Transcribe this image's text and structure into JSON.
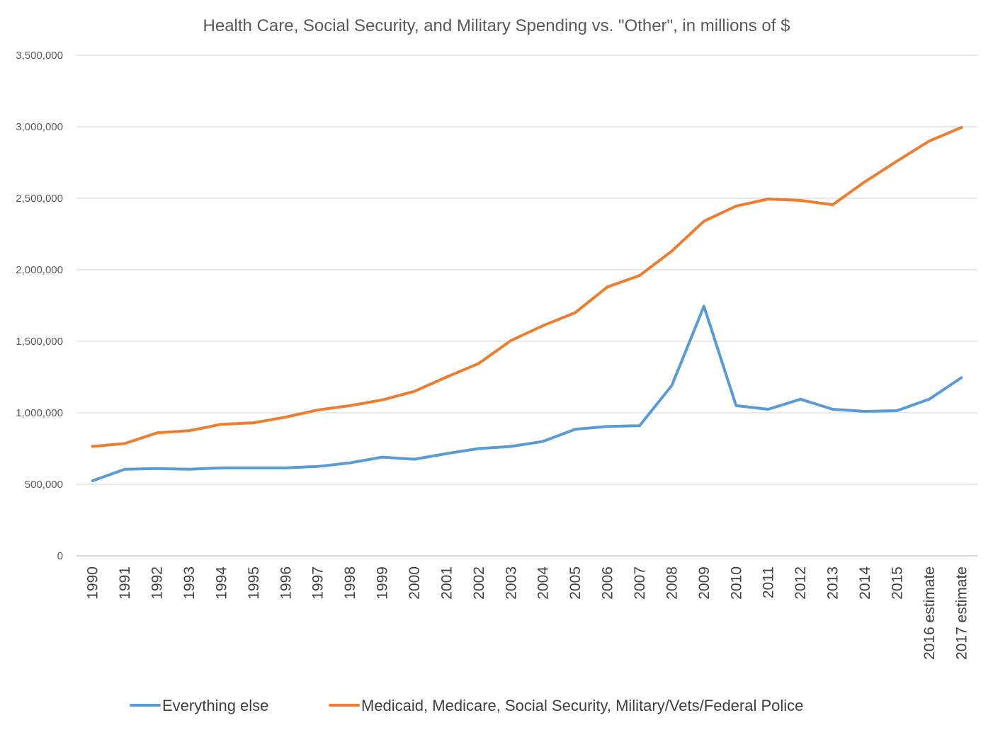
{
  "chart_data": {
    "type": "line",
    "title": "Health Care, Social Security, and Military Spending vs. \"Other\", in millions of $",
    "xlabel": "",
    "ylabel": "",
    "ylim": [
      0,
      3500000
    ],
    "y_ticks": [
      0,
      500000,
      1000000,
      1500000,
      2000000,
      2500000,
      3000000,
      3500000
    ],
    "y_tick_labels": [
      "0",
      "500,000",
      "1,000,000",
      "1,500,000",
      "2,000,000",
      "2,500,000",
      "3,000,000",
      "3,500,000"
    ],
    "grid": true,
    "legend_position": "bottom",
    "categories": [
      "1990",
      "1991",
      "1992",
      "1993",
      "1994",
      "1995",
      "1996",
      "1997",
      "1998",
      "1999",
      "2000",
      "2001",
      "2002",
      "2003",
      "2004",
      "2005",
      "2006",
      "2007",
      "2008",
      "2009",
      "2010",
      "2011",
      "2012",
      "2013",
      "2014",
      "2015",
      "2016 estimate",
      "2017 estimate"
    ],
    "series": [
      {
        "name": "Everything else",
        "color": "#5b9bd5",
        "values": [
          525000,
          605000,
          610000,
          605000,
          615000,
          615000,
          615000,
          625000,
          650000,
          690000,
          675000,
          715000,
          750000,
          765000,
          800000,
          885000,
          905000,
          910000,
          1190000,
          1745000,
          1050000,
          1025000,
          1095000,
          1025000,
          1010000,
          1015000,
          1095000,
          1245000
        ]
      },
      {
        "name": "Medicaid, Medicare, Social Security, Military/Vets/Federal Police",
        "color": "#ed7d31",
        "values": [
          765000,
          785000,
          860000,
          875000,
          920000,
          930000,
          970000,
          1020000,
          1050000,
          1090000,
          1150000,
          1250000,
          1345000,
          1505000,
          1610000,
          1700000,
          1880000,
          1960000,
          2130000,
          2340000,
          2445000,
          2495000,
          2485000,
          2455000,
          2615000,
          2760000,
          2900000,
          2995000
        ]
      }
    ]
  }
}
